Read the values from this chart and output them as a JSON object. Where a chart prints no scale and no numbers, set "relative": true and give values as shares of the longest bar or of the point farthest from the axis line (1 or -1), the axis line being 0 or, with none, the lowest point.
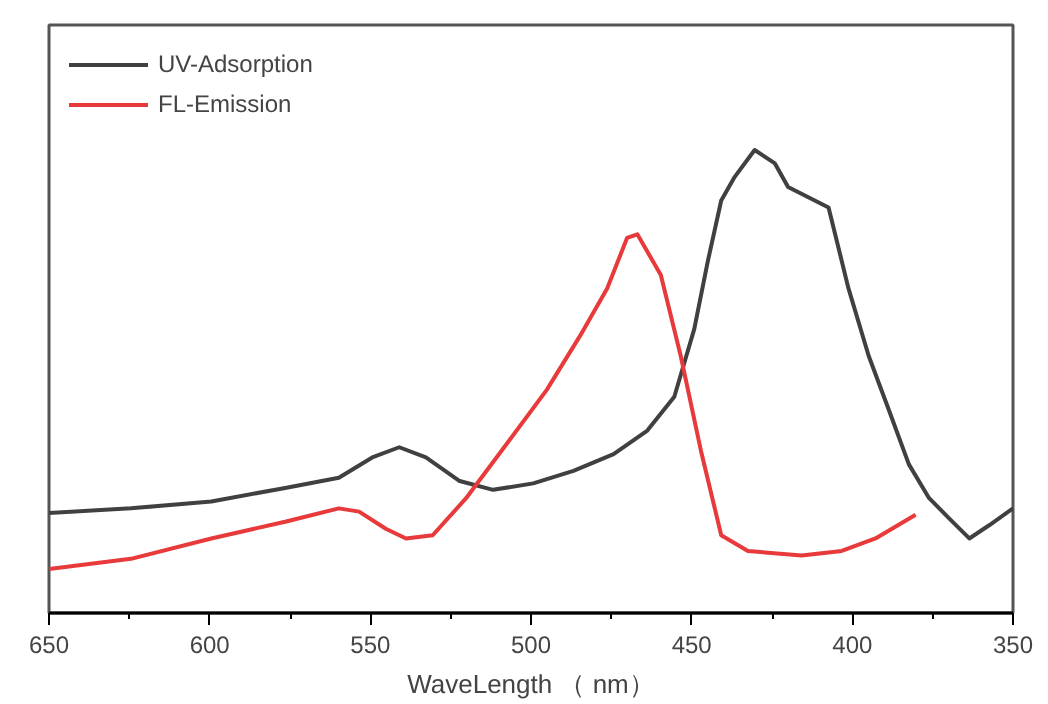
{
  "chart_data": {
    "type": "line",
    "relative": true,
    "xlabel": "WaveLength （ nm）",
    "xlim": [
      650,
      350
    ],
    "xticks": [
      650,
      {
        "value": 625,
        "label": null
      },
      600,
      {
        "value": 575,
        "label": null
      },
      550,
      {
        "value": 525,
        "label": null
      },
      500,
      {
        "value": 475,
        "label": null
      },
      450,
      {
        "value": 425,
        "label": null
      },
      400,
      {
        "value": 375,
        "label": null
      },
      350
    ],
    "legend": "top left",
    "grid": false,
    "series": [
      {
        "name": "UV-Adsorption",
        "color": "#404040",
        "x": [
          650,
          624.5,
          599.5,
          576.5,
          559.8,
          549.4,
          541.0,
          532.7,
          522.2,
          511.8,
          499.3,
          486.8,
          474.3,
          463.8,
          455.4,
          449.2,
          445.0,
          440.8,
          436.6,
          430.4,
          424.1,
          420.0,
          413.7,
          407.4,
          401.2,
          394.9,
          388.6,
          382.4,
          376.1,
          369.8,
          363.6,
          357.3,
          350
        ],
        "values": [
          0.216,
          0.226,
          0.241,
          0.27,
          0.292,
          0.336,
          0.358,
          0.336,
          0.285,
          0.266,
          0.28,
          0.307,
          0.343,
          0.394,
          0.467,
          0.613,
          0.759,
          0.891,
          0.942,
          1.0,
          0.971,
          0.92,
          0.898,
          0.876,
          0.701,
          0.555,
          0.438,
          0.321,
          0.248,
          0.204,
          0.161,
          0.19,
          0.226
        ]
      },
      {
        "name": "FL-Emission",
        "color": "#e8393b",
        "x": [
          650,
          624.5,
          599.5,
          576.5,
          559.8,
          553.5,
          545.2,
          538.9,
          530.6,
          520.2,
          507.6,
          495.1,
          484.7,
          476.3,
          470.1,
          466.9,
          459.6,
          453.4,
          447.1,
          440.8,
          432.5,
          415.8,
          403.3,
          392.8,
          380.3
        ],
        "values": [
          0.095,
          0.117,
          0.161,
          0.197,
          0.226,
          0.219,
          0.182,
          0.161,
          0.168,
          0.248,
          0.365,
          0.482,
          0.599,
          0.701,
          0.81,
          0.818,
          0.73,
          0.555,
          0.35,
          0.168,
          0.134,
          0.124,
          0.134,
          0.161,
          0.212
        ]
      }
    ]
  }
}
